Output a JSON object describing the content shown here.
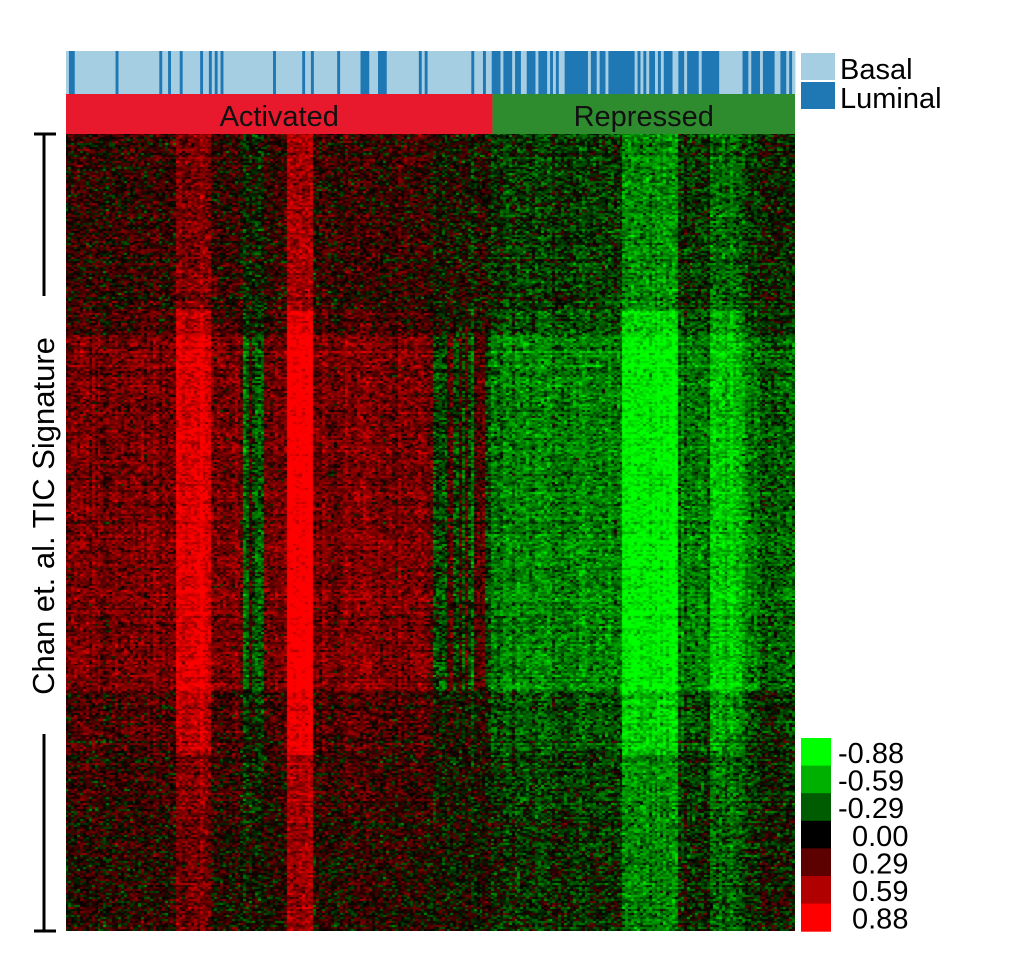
{
  "chart_data": {
    "type": "heatmap",
    "title": "",
    "ylabel": "Chan et. al. TIC Signature",
    "groups": [
      {
        "label": "Activated",
        "color": "#e8192c",
        "fraction": 0.585
      },
      {
        "label": "Repressed",
        "color": "#2e8b2e",
        "fraction": 0.415
      }
    ],
    "subtype_legend": [
      {
        "label": "Basal",
        "color": "#a6cee3"
      },
      {
        "label": "Luminal",
        "color": "#1f78b4"
      }
    ],
    "subtype_ratio_luminal": {
      "activated": 0.2,
      "repressed": 0.7
    },
    "colorbar": {
      "ticks": [
        "-0.88",
        "-0.59",
        "-0.29",
        "0.00",
        "0.29",
        "0.59",
        "0.88"
      ],
      "colors": [
        "#00ff00",
        "#00b000",
        "#005c00",
        "#000000",
        "#5c0000",
        "#b00000",
        "#ff0000"
      ],
      "range": [
        -0.88,
        0.88
      ]
    },
    "low_color": "#00ff00",
    "mid_color": "#000000",
    "high_color": "#ff0000",
    "grid": false
  }
}
